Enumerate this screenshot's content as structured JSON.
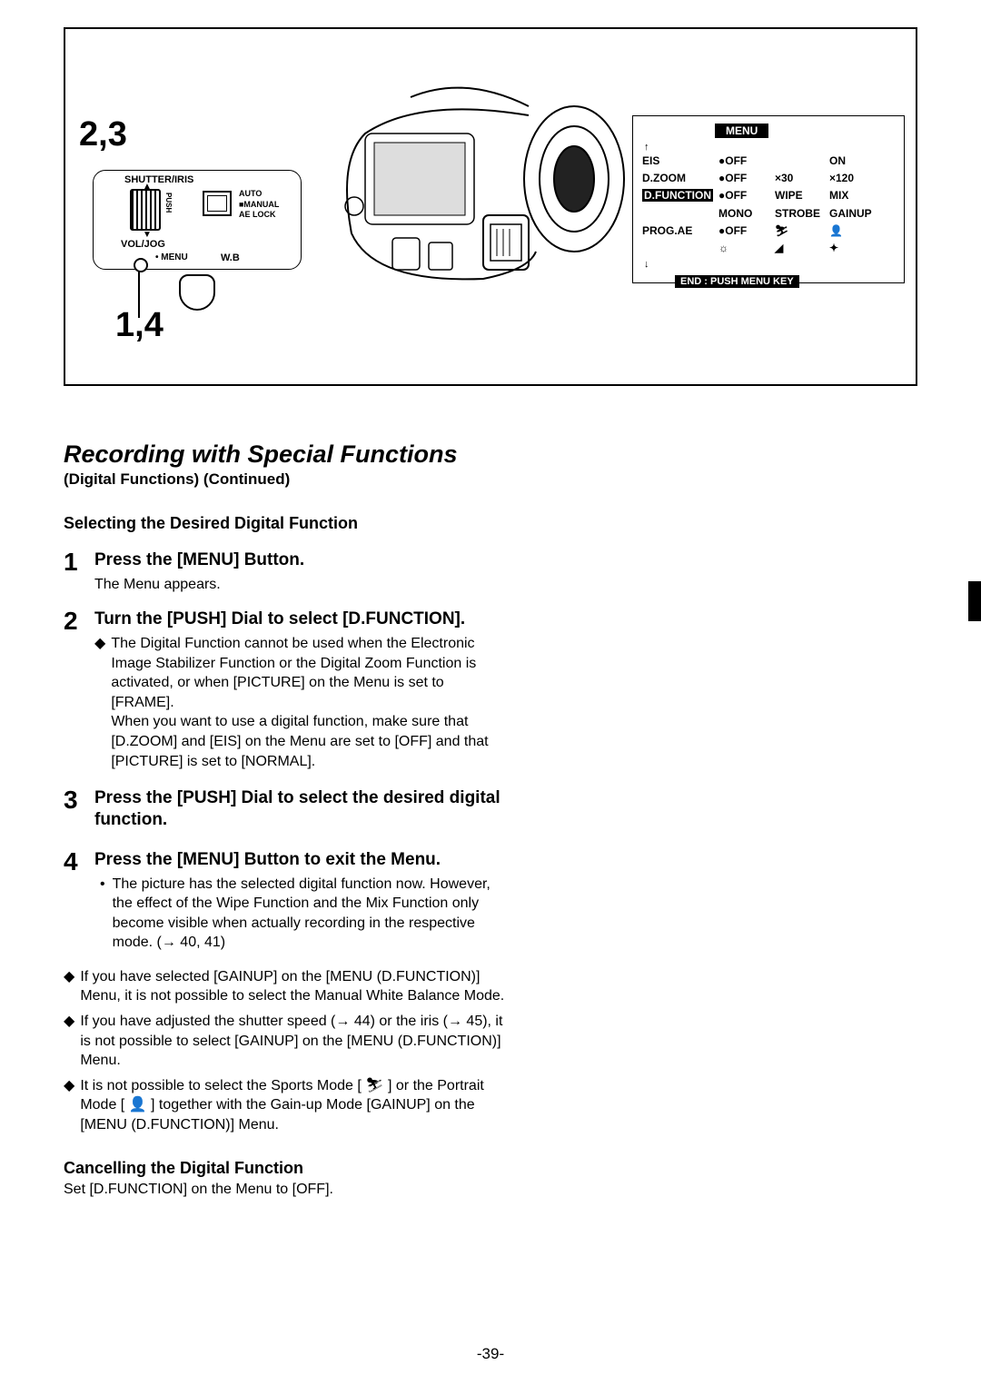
{
  "figure": {
    "label_top": "2,3",
    "label_bottom": "1,4",
    "dial": {
      "shutter": "SHUTTER/IRIS",
      "push": "PUSH",
      "auto": "AUTO",
      "manual": "■MANUAL",
      "aelock": "AE LOCK",
      "voljog": "VOL/JOG",
      "menu": "• MENU",
      "wb": "W.B"
    },
    "menu_screen": {
      "title": "MENU",
      "rows": [
        {
          "c1": "EIS",
          "c2": "●OFF",
          "c3": "",
          "c4": "ON"
        },
        {
          "c1": "D.ZOOM",
          "c2": "●OFF",
          "c3": "×30",
          "c4": "×120"
        },
        {
          "c1": "D.FUNCTION",
          "c2": "●OFF",
          "c3": "WIPE",
          "c4": "MIX",
          "hl": true
        },
        {
          "c1": "",
          "c2": "MONO",
          "c3": "STROBE",
          "c4": "GAINUP"
        },
        {
          "c1": "PROG.AE",
          "c2": "●OFF",
          "c3": "⛷",
          "c4": "👤"
        },
        {
          "c1": "",
          "c2": "☼",
          "c3": "◢",
          "c4": "✦"
        }
      ],
      "end": "END : PUSH MENU KEY"
    }
  },
  "section_title": "Recording with Special Functions",
  "section_sub": "(Digital Functions) (Continued)",
  "subheading": "Selecting the Desired Digital Function",
  "steps": [
    {
      "num": "1",
      "title": "Press the [MENU] Button.",
      "note": "The Menu appears."
    },
    {
      "num": "2",
      "title": "Turn the [PUSH] Dial to select [D.FUNCTION].",
      "diamonds": [
        "The Digital Function cannot be used when the Electronic Image Stabilizer Function or the Digital Zoom Function is activated, or when [PICTURE] on the Menu is set to [FRAME].\nWhen you want to use a digital function, make sure that [D.ZOOM] and [EIS] on the Menu are set to [OFF] and that [PICTURE] is set to [NORMAL]."
      ]
    },
    {
      "num": "3",
      "title": "Press the [PUSH] Dial to select the desired digital function."
    },
    {
      "num": "4",
      "title": "Press the [MENU] Button to exit the Menu.",
      "bullets": [
        "The picture has the selected digital function now. However, the effect of the Wipe Function and the Mix Function only become visible when actually recording in the respective mode. (→ 40, 41)"
      ]
    }
  ],
  "notes": [
    "If you have selected [GAINUP] on the [MENU (D.FUNCTION)] Menu, it is not possible to select the Manual White Balance Mode.",
    "If you have adjusted the shutter speed (→ 44) or the iris (→ 45), it is not possible to select [GAINUP] on the [MENU (D.FUNCTION)] Menu.",
    "It is not possible to select the Sports Mode [ ⛷ ] or the Portrait Mode [ 👤 ] together with the Gain-up Mode [GAINUP] on the [MENU (D.FUNCTION)] Menu."
  ],
  "cancel_head": "Cancelling the Digital Function",
  "cancel_text": "Set [D.FUNCTION] on the Menu to [OFF].",
  "page_num": "-39-"
}
